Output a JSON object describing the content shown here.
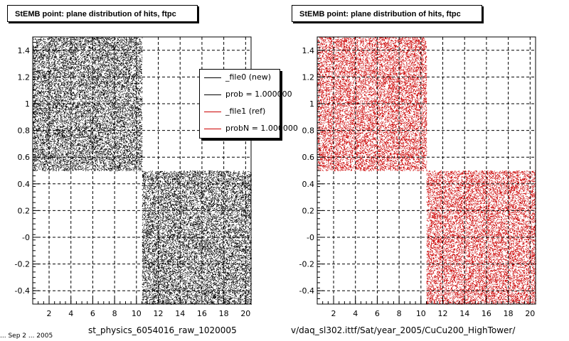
{
  "chart_data": [
    {
      "type": "scatter",
      "title": "StEMB point: plane distribution of hits, ftpc",
      "xlabel": "st_physics_6054016_raw_1020005",
      "ylabel": "",
      "xlim": [
        0.5,
        20.5
      ],
      "ylim": [
        -0.5,
        1.5
      ],
      "x_ticks": [
        "2",
        "4",
        "6",
        "8",
        "10",
        "12",
        "14",
        "16",
        "18",
        "20"
      ],
      "y_ticks": [
        "1.4",
        "1.2",
        "1",
        "0.8",
        "0.6",
        "0.4",
        "0.2",
        "-0",
        "-0.2",
        "-0.4"
      ],
      "grid": true,
      "marker_color": "#000000",
      "regions": [
        {
          "x": [
            0.5,
            10.5
          ],
          "y": [
            0.5,
            1.5
          ]
        },
        {
          "x": [
            10.5,
            20.5
          ],
          "y": [
            -0.5,
            0.5
          ]
        }
      ],
      "legend": {
        "placement": "top-right",
        "entries": [
          {
            "label": "_file0 (new)",
            "color": "#000000"
          },
          {
            "label": "prob = 1.000000",
            "color": "#000000"
          },
          {
            "label": "_file1 (ref)",
            "color": "#cc0000"
          },
          {
            "label": "probN = 1.000000",
            "color": "#cc0000"
          }
        ]
      }
    },
    {
      "type": "scatter",
      "title": "StEMB point: plane distribution of hits, ftpc",
      "xlabel": "v/daq_sl302.ittf/Sat/year_2005/CuCu200_HighTower/",
      "ylabel": "",
      "xlim": [
        0.5,
        20.5
      ],
      "ylim": [
        -0.5,
        1.5
      ],
      "x_ticks": [
        "2",
        "4",
        "6",
        "8",
        "10",
        "12",
        "14",
        "16",
        "18",
        "20"
      ],
      "y_ticks": [
        "1.4",
        "1.2",
        "1",
        "0.8",
        "0.6",
        "0.4",
        "0.2",
        "-0",
        "-0.2",
        "-0.4"
      ],
      "grid": true,
      "marker_color": "#cc0000",
      "regions": [
        {
          "x": [
            0.5,
            10.5
          ],
          "y": [
            0.5,
            1.5
          ]
        },
        {
          "x": [
            10.5,
            20.5
          ],
          "y": [
            -0.5,
            0.5
          ]
        }
      ]
    }
  ],
  "footer_stub": "... Sep 2 ... 2005"
}
